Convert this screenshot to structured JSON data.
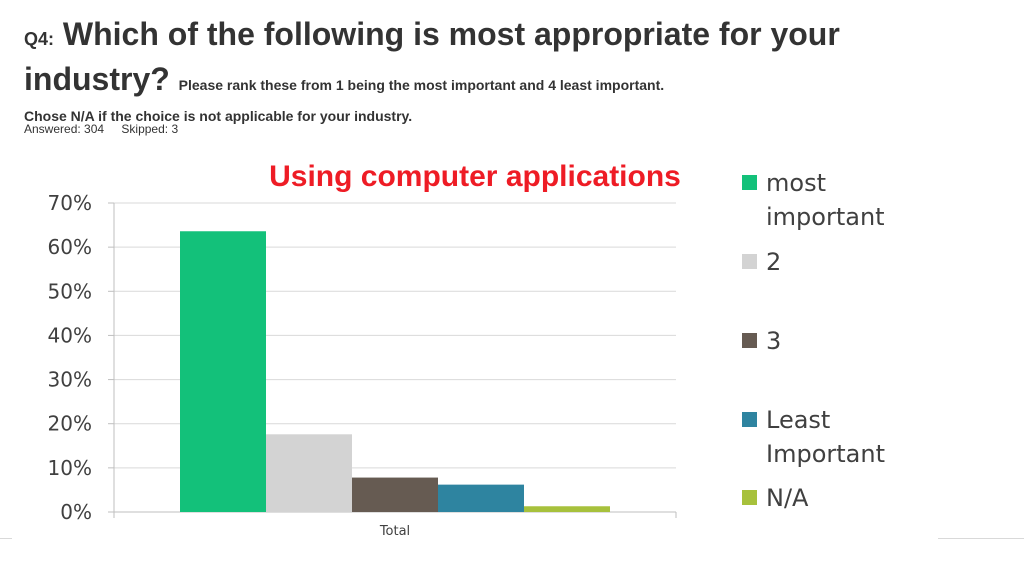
{
  "question": {
    "number": "Q4:",
    "title_part1": "Which of the following is most appropriate for your",
    "title_part2": "industry?",
    "instruction": "Please rank these from 1 being the most important and 4 least important.",
    "note": "Chose N/A if the choice is not applicable for your industry."
  },
  "stats": {
    "answered": "Answered: 304",
    "skipped": "Skipped: 3"
  },
  "chart_data": {
    "type": "bar",
    "title": "Using computer applications",
    "title_color": "#ee1c25",
    "categories": [
      "Total"
    ],
    "series": [
      {
        "name": "most important",
        "values": [
          63.6
        ],
        "color": "#13c17a"
      },
      {
        "name": "2",
        "values": [
          17.6
        ],
        "color": "#d3d3d3"
      },
      {
        "name": "3",
        "values": [
          7.8
        ],
        "color": "#665b52"
      },
      {
        "name": "Least Important",
        "values": [
          6.2
        ],
        "color": "#2e84a0"
      },
      {
        "name": "N/A",
        "values": [
          1.3
        ],
        "color": "#a7c13c"
      }
    ],
    "ylim": [
      0,
      70
    ],
    "yticks": [
      "0%",
      "10%",
      "20%",
      "30%",
      "40%",
      "50%",
      "60%",
      "70%"
    ],
    "grid": true,
    "legend_position": "right"
  }
}
